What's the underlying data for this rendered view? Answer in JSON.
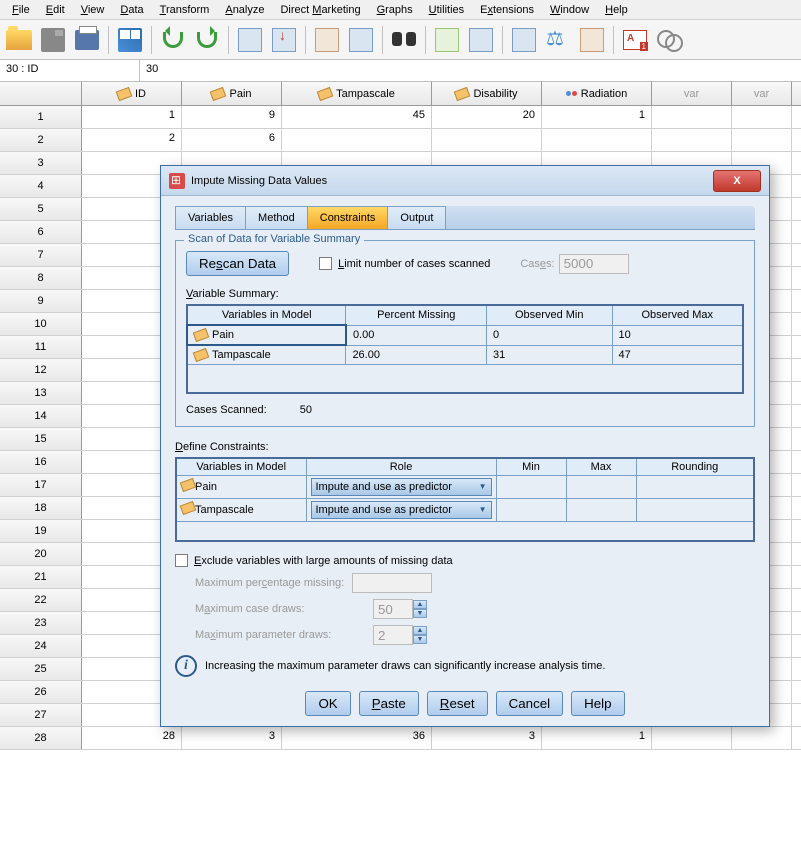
{
  "menu": [
    "File",
    "Edit",
    "View",
    "Data",
    "Transform",
    "Analyze",
    "Direct Marketing",
    "Graphs",
    "Utilities",
    "Extensions",
    "Window",
    "Help"
  ],
  "menu_u": [
    0,
    0,
    0,
    0,
    0,
    0,
    7,
    0,
    0,
    1,
    0,
    0
  ],
  "namebox": {
    "ref": "30 : ID",
    "val": "30"
  },
  "cols": [
    "ID",
    "Pain",
    "Tampascale",
    "Disability",
    "Radiation",
    "var",
    "var"
  ],
  "grid": {
    "r1": {
      "id": "1",
      "pain": "9",
      "tamp": "45",
      "dis": "20",
      "rad": "1"
    },
    "r2": {
      "id": "2",
      "pain": "6",
      "tamp": "",
      "dis": "",
      "rad": ""
    },
    "r28": {
      "id": "28",
      "pain": "3",
      "tamp": "36",
      "dis": "3",
      "rad": "1"
    }
  },
  "dialog": {
    "title": "Impute Missing Data Values",
    "tabs": [
      "Variables",
      "Method",
      "Constraints",
      "Output"
    ],
    "active_tab": 2,
    "scan": {
      "legend": "Scan of Data for Variable Summary",
      "rescan": "Rescan Data",
      "limit_label": "Limit number of cases scanned",
      "cases_label": "Cases:",
      "cases_val": "5000"
    },
    "vs": {
      "label": "Variable Summary:",
      "headers": [
        "Variables in Model",
        "Percent Missing",
        "Observed Min",
        "Observed Max"
      ],
      "rows": [
        {
          "name": "Pain",
          "pm": "0.00",
          "min": "0",
          "max": "10"
        },
        {
          "name": "Tampascale",
          "pm": "26.00",
          "min": "31",
          "max": "47"
        }
      ],
      "scanned_label": "Cases Scanned:",
      "scanned_val": "50"
    },
    "dc": {
      "label": "Define Constraints:",
      "headers": [
        "Variables in Model",
        "Role",
        "Min",
        "Max",
        "Rounding"
      ],
      "rows": [
        {
          "name": "Pain",
          "role": "Impute and use as predictor"
        },
        {
          "name": "Tampascale",
          "role": "Impute and use as predictor"
        }
      ]
    },
    "excl": {
      "label": "Exclude variables with large amounts of missing data",
      "max_pct": "Maximum percentage missing:",
      "max_case": "Maximum case draws:",
      "max_case_val": "50",
      "max_param": "Maximum parameter draws:",
      "max_param_val": "2"
    },
    "info": "Increasing the maximum parameter draws can significantly increase analysis time.",
    "buttons": [
      "OK",
      "Paste",
      "Reset",
      "Cancel",
      "Help"
    ]
  }
}
